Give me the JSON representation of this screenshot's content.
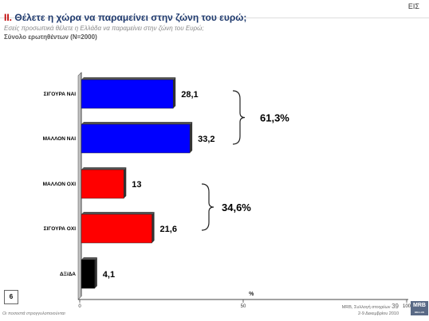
{
  "header": {
    "title_number": "II.",
    "title": "Θέλετε η χώρα να παραμείνει στην ζώνη του ευρώ;",
    "subtitle": "Εσείς προσωπικά θέλετε η Ελλάδα να παραμείνει στην ζώνη του Ευρώ;",
    "base": "Σύνολο ερωτηθέντων (N=2000)",
    "logo": "ΕΙΣ"
  },
  "chart_data": {
    "type": "bar",
    "orientation": "horizontal",
    "categories": [
      "ΣΙΓΟΥΡΑ ΝΑΙ",
      "ΜΑΛΛΟΝ ΝΑΙ",
      "ΜΑΛΛΟΝ ΟΧΙ",
      "ΣΙΓΟΥΡΑ ΟΧΙ",
      "ΔΞ/ΔΑ"
    ],
    "values": [
      28.1,
      33.2,
      13,
      21.6,
      4.1
    ],
    "value_labels": [
      "28,1",
      "33,2",
      "13",
      "21,6",
      "4,1"
    ],
    "colors": [
      "#0000ff",
      "#0000ff",
      "#ff0000",
      "#ff0000",
      "#000000"
    ],
    "xlim": [
      0,
      100
    ],
    "x_ticks": [
      "0",
      "50",
      "100"
    ],
    "xlabel": "%",
    "groups": [
      {
        "label": "61,3%",
        "from": 0,
        "to": 1
      },
      {
        "label": "34,6%",
        "from": 2,
        "to": 3
      }
    ],
    "grid": false
  },
  "footer": {
    "page_number": "6",
    "note": "Οι ποσοστά στρογγυλοποιούνται",
    "source": "MRB, Συλλογή στοιχείων",
    "dates": "2-9 Δεκεμβρίου 2010",
    "page": "39",
    "logo": "MRB",
    "logo_sub": "HELLAS"
  }
}
